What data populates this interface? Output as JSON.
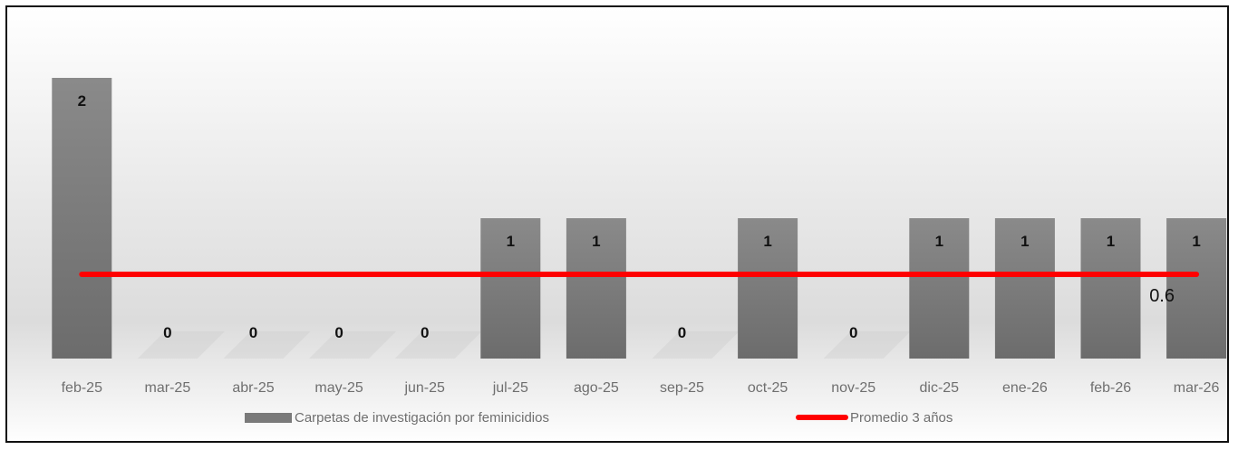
{
  "chart_data": {
    "type": "bar",
    "categories": [
      "feb-25",
      "mar-25",
      "abr-25",
      "may-25",
      "jun-25",
      "jul-25",
      "ago-25",
      "sep-25",
      "oct-25",
      "nov-25",
      "dic-25",
      "ene-26",
      "feb-26",
      "mar-26"
    ],
    "series": [
      {
        "name": "Carpetas de investigación por feminicidios",
        "type": "bar",
        "values": [
          2,
          0,
          0,
          0,
          0,
          1,
          1,
          0,
          1,
          0,
          1,
          1,
          1,
          1
        ],
        "color": "#7a7a7a",
        "data_labels": [
          "2",
          "0",
          "0",
          "0",
          "0",
          "1",
          "1",
          "0",
          "1",
          "0",
          "1",
          "1",
          "1",
          "1"
        ]
      },
      {
        "name": "Promedio 3 años",
        "type": "line",
        "values": [
          0.6,
          0.6,
          0.6,
          0.6,
          0.6,
          0.6,
          0.6,
          0.6,
          0.6,
          0.6,
          0.6,
          0.6,
          0.6,
          0.6
        ],
        "color": "#ff0000",
        "end_label": "0.6"
      }
    ],
    "ylim": [
      0,
      2
    ],
    "grid": false,
    "legend_position": "bottom"
  }
}
